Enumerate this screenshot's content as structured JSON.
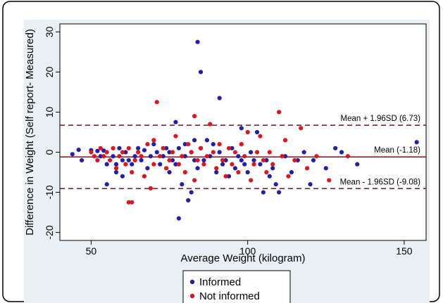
{
  "chart_data": {
    "type": "scatter",
    "title": "",
    "xlabel": "Average Weight (kilogram)",
    "ylabel": "Difference in Weight (Self report- Measured)",
    "xlim": [
      40,
      157
    ],
    "ylim": [
      -22,
      32
    ],
    "xticks": [
      50,
      100,
      150
    ],
    "yticks": [
      -20,
      -10,
      0,
      10,
      20,
      30
    ],
    "grid": false,
    "legend_position": "bottom",
    "reference_lines": [
      {
        "label": "Mean + 1.96SD (6.73)",
        "y": 6.73,
        "style": "dashed"
      },
      {
        "label": "Mean (-1.18)",
        "y": -1.18,
        "style": "solid"
      },
      {
        "label": "Mean - 1.96SD (-9.08)",
        "y": -9.08,
        "style": "dashed"
      }
    ],
    "series": [
      {
        "name": "Informed",
        "color": "#1f1fa8",
        "points": [
          [
            44,
            -0.5
          ],
          [
            46,
            0.6
          ],
          [
            47,
            -2
          ],
          [
            50,
            0.5
          ],
          [
            52,
            0.3
          ],
          [
            53,
            -1
          ],
          [
            54,
            0.4
          ],
          [
            55,
            -3
          ],
          [
            55,
            -8
          ],
          [
            57,
            -1
          ],
          [
            58,
            -3
          ],
          [
            58,
            -5
          ],
          [
            59,
            1
          ],
          [
            60,
            -2
          ],
          [
            60,
            -6
          ],
          [
            61,
            0
          ],
          [
            62,
            -2
          ],
          [
            63,
            -3
          ],
          [
            64,
            -1
          ],
          [
            65,
            1
          ],
          [
            66,
            -2
          ],
          [
            67,
            0.5
          ],
          [
            68,
            -4
          ],
          [
            69,
            -1
          ],
          [
            70,
            2
          ],
          [
            71,
            0
          ],
          [
            72,
            -3
          ],
          [
            73,
            -1
          ],
          [
            74,
            1
          ],
          [
            75,
            -5
          ],
          [
            75,
            0
          ],
          [
            76,
            -2
          ],
          [
            77,
            7.5
          ],
          [
            77,
            -3
          ],
          [
            78,
            -16.5
          ],
          [
            78,
            1
          ],
          [
            79,
            -8
          ],
          [
            80,
            2
          ],
          [
            80,
            -1
          ],
          [
            81,
            -12
          ],
          [
            82,
            -10
          ],
          [
            82,
            0
          ],
          [
            83,
            3
          ],
          [
            83,
            -2
          ],
          [
            84,
            27.5
          ],
          [
            84,
            -4
          ],
          [
            85,
            20
          ],
          [
            85,
            1
          ],
          [
            86,
            -2
          ],
          [
            87,
            3
          ],
          [
            88,
            -1
          ],
          [
            89,
            2
          ],
          [
            90,
            -5
          ],
          [
            91,
            13.5
          ],
          [
            91,
            0
          ],
          [
            92,
            -3
          ],
          [
            93,
            -2
          ],
          [
            94,
            -6
          ],
          [
            95,
            1
          ],
          [
            96,
            -4
          ],
          [
            97,
            -1
          ],
          [
            98,
            6
          ],
          [
            98,
            -2
          ],
          [
            99,
            -3
          ],
          [
            100,
            -5
          ],
          [
            101,
            0
          ],
          [
            102,
            -2
          ],
          [
            103,
            5
          ],
          [
            104,
            -3
          ],
          [
            105,
            -10
          ],
          [
            106,
            -2
          ],
          [
            107,
            -6
          ],
          [
            108,
            -4
          ],
          [
            109,
            -8
          ],
          [
            110,
            -10
          ],
          [
            112,
            -1
          ],
          [
            114,
            -5
          ],
          [
            116,
            -2
          ],
          [
            118,
            0
          ],
          [
            120,
            -8
          ],
          [
            121,
            -2
          ],
          [
            125,
            -4
          ],
          [
            128,
            1
          ],
          [
            130,
            0
          ],
          [
            135,
            -3
          ],
          [
            154,
            2.5
          ]
        ]
      },
      {
        "name": "Not informed",
        "color": "#e0141c",
        "points": [
          [
            50,
            0
          ],
          [
            51,
            -1
          ],
          [
            52,
            -2
          ],
          [
            53,
            1
          ],
          [
            54,
            -1
          ],
          [
            55,
            0
          ],
          [
            56,
            -2
          ],
          [
            57,
            1
          ],
          [
            58,
            -4
          ],
          [
            59,
            -1
          ],
          [
            60,
            0
          ],
          [
            61,
            -3
          ],
          [
            62,
            -12.5
          ],
          [
            62,
            1
          ],
          [
            63,
            -12.5
          ],
          [
            63,
            -5
          ],
          [
            64,
            -2
          ],
          [
            65,
            0
          ],
          [
            66,
            -1
          ],
          [
            67,
            -6
          ],
          [
            68,
            2
          ],
          [
            69,
            -9
          ],
          [
            70,
            -3
          ],
          [
            70,
            3
          ],
          [
            71,
            12.5
          ],
          [
            72,
            -1
          ],
          [
            73,
            1
          ],
          [
            74,
            -4
          ],
          [
            75,
            -2
          ],
          [
            76,
            0
          ],
          [
            77,
            4
          ],
          [
            78,
            -3
          ],
          [
            79,
            -1
          ],
          [
            80,
            -5
          ],
          [
            81,
            2
          ],
          [
            82,
            0
          ],
          [
            83,
            9
          ],
          [
            83,
            -7
          ],
          [
            84,
            -2
          ],
          [
            85,
            1
          ],
          [
            86,
            -3
          ],
          [
            87,
            -1
          ],
          [
            88,
            7
          ],
          [
            89,
            0
          ],
          [
            90,
            -4
          ],
          [
            91,
            2
          ],
          [
            92,
            -2
          ],
          [
            93,
            -6
          ],
          [
            94,
            1
          ],
          [
            95,
            -3
          ],
          [
            96,
            0
          ],
          [
            97,
            -5
          ],
          [
            98,
            2
          ],
          [
            99,
            -1
          ],
          [
            100,
            5
          ],
          [
            101,
            -7
          ],
          [
            102,
            -3
          ],
          [
            103,
            0
          ],
          [
            104,
            4
          ],
          [
            105,
            -2
          ],
          [
            106,
            -5
          ],
          [
            107,
            0
          ],
          [
            108,
            -3
          ],
          [
            110,
            10
          ],
          [
            111,
            -1
          ],
          [
            112,
            3
          ],
          [
            113,
            -6
          ],
          [
            115,
            -2
          ],
          [
            117,
            6
          ],
          [
            119,
            -4
          ],
          [
            122,
            -1
          ],
          [
            126,
            -7
          ],
          [
            132,
            -1
          ]
        ]
      }
    ]
  }
}
